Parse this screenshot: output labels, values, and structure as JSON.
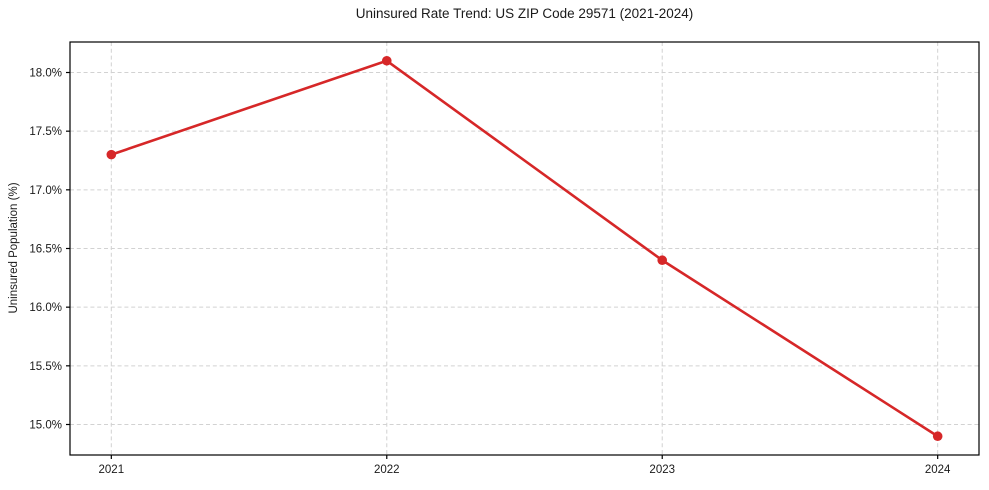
{
  "chart_data": {
    "type": "line",
    "title": "Uninsured Rate Trend: US ZIP Code 29571 (2021-2024)",
    "xlabel": "",
    "ylabel": "Uninsured Population (%)",
    "x": [
      2021,
      2022,
      2023,
      2024
    ],
    "series": [
      {
        "values": [
          17.3,
          18.1,
          16.4,
          14.9
        ],
        "color": "#d62728",
        "marker": "circle"
      }
    ],
    "xticks": [
      2021,
      2022,
      2023,
      2024
    ],
    "xtick_labels": [
      "2021",
      "2022",
      "2023",
      "2024"
    ],
    "yticks": [
      15.0,
      15.5,
      16.0,
      16.5,
      17.0,
      17.5,
      18.0
    ],
    "ytick_labels": [
      "15.0%",
      "15.5%",
      "16.0%",
      "16.5%",
      "17.0%",
      "17.5%",
      "18.0%"
    ],
    "xlim": [
      2020.85,
      2024.15
    ],
    "ylim": [
      14.74,
      18.26
    ],
    "grid": true,
    "grid_style": "dashed",
    "legend_position": "none",
    "colors": {
      "line": "#d62728",
      "grid": "#d2d2d2",
      "axis": "#000000",
      "text": "#1a1a1a",
      "background": "#ffffff"
    }
  }
}
